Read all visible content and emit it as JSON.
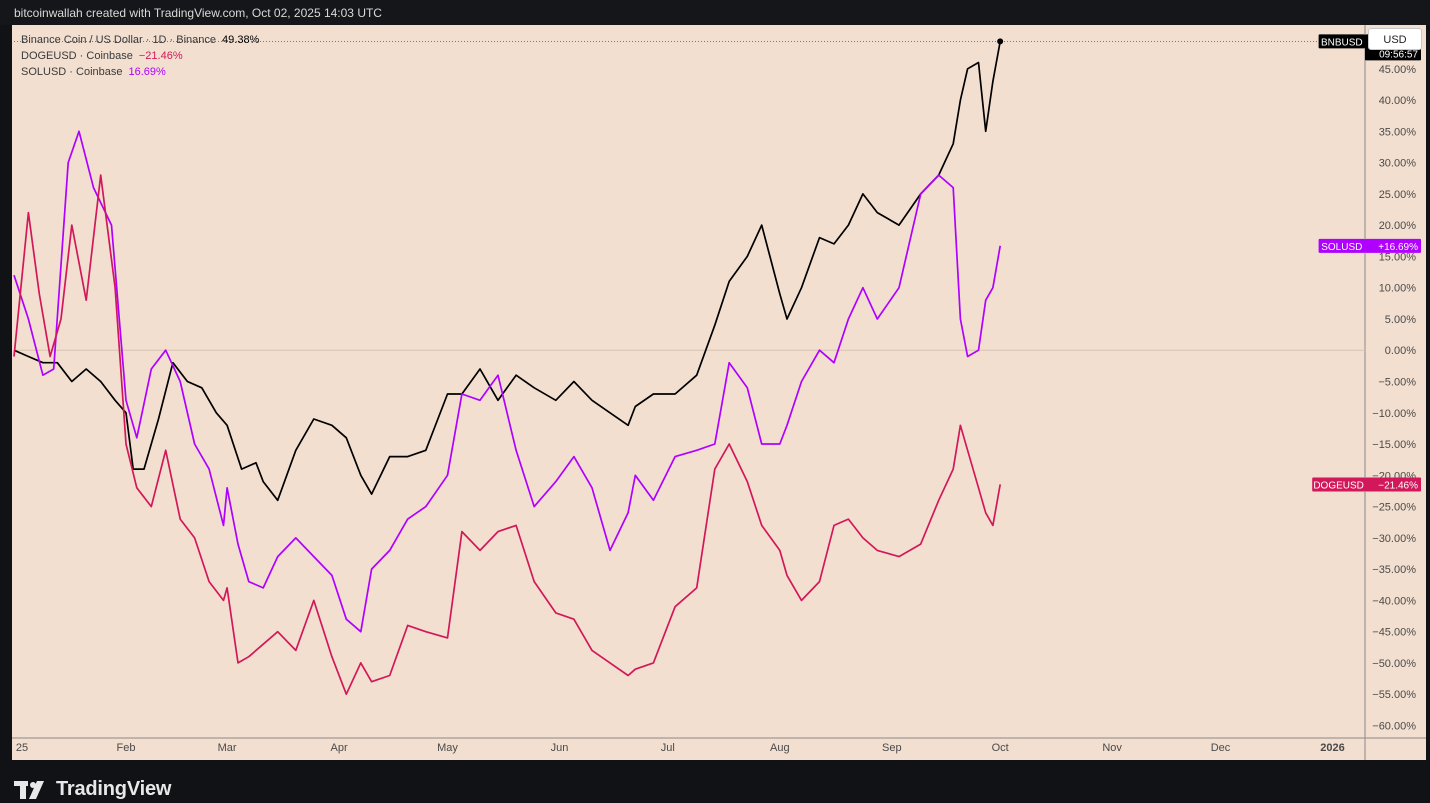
{
  "header": {
    "credit": "bitcoinwallah created with TradingView.com, Oct 02, 2025 14:03 UTC"
  },
  "legend": {
    "bnb_name": "Binance Coin / US Dollar · 1D · Binance",
    "bnb_value": "49.38%",
    "doge_name": "DOGEUSD · Coinbase",
    "doge_value": "−21.46%",
    "sol_name": "SOLUSD · Coinbase",
    "sol_value": "16.69%"
  },
  "currency_button": "USD",
  "footer": {
    "logo_text": "TradingView"
  },
  "colors": {
    "bnb": "#000000",
    "doge": "#d2185a",
    "sol": "#b000ff",
    "background": "#f2dfd0"
  },
  "chart_data": {
    "type": "line",
    "y_unit": "%",
    "ylim": [
      -62,
      52
    ],
    "xlim": [
      "2025-01-01",
      "2026-01-10"
    ],
    "y_ticks": [
      "45.00%",
      "40.00%",
      "35.00%",
      "30.00%",
      "25.00%",
      "20.00%",
      "15.00%",
      "10.00%",
      "5.00%",
      "0.00%",
      "−5.00%",
      "−10.00%",
      "−15.00%",
      "−20.00%",
      "−25.00%",
      "−30.00%",
      "−35.00%",
      "−40.00%",
      "−45.00%",
      "−50.00%",
      "−55.00%",
      "−60.00%"
    ],
    "y_tick_values": [
      45,
      40,
      35,
      30,
      25,
      20,
      15,
      10,
      5,
      0,
      -5,
      -10,
      -15,
      -20,
      -25,
      -30,
      -35,
      -40,
      -45,
      -50,
      -55,
      -60
    ],
    "x_ticks": [
      {
        "label": "25",
        "date": "2025-01-01"
      },
      {
        "label": "Feb",
        "date": "2025-02-01"
      },
      {
        "label": "Mar",
        "date": "2025-03-01"
      },
      {
        "label": "Apr",
        "date": "2025-04-01"
      },
      {
        "label": "May",
        "date": "2025-05-01"
      },
      {
        "label": "Jun",
        "date": "2025-06-01"
      },
      {
        "label": "Jul",
        "date": "2025-07-01"
      },
      {
        "label": "Aug",
        "date": "2025-08-01"
      },
      {
        "label": "Sep",
        "date": "2025-09-01"
      },
      {
        "label": "Oct",
        "date": "2025-10-01"
      },
      {
        "label": "Nov",
        "date": "2025-11-01"
      },
      {
        "label": "Dec",
        "date": "2025-12-01"
      },
      {
        "label": "2026",
        "date": "2026-01-01"
      }
    ],
    "series": [
      {
        "name": "BNBUSD",
        "tag_value": "+49.38%",
        "tag_time": "09:56:57",
        "color": "#000000",
        "x": [
          "2025-01-01",
          "2025-01-05",
          "2025-01-09",
          "2025-01-13",
          "2025-01-17",
          "2025-01-21",
          "2025-01-25",
          "2025-01-29",
          "2025-02-01",
          "2025-02-03",
          "2025-02-06",
          "2025-02-10",
          "2025-02-14",
          "2025-02-18",
          "2025-02-22",
          "2025-02-26",
          "2025-03-01",
          "2025-03-05",
          "2025-03-09",
          "2025-03-11",
          "2025-03-15",
          "2025-03-20",
          "2025-03-25",
          "2025-03-30",
          "2025-04-03",
          "2025-04-07",
          "2025-04-10",
          "2025-04-15",
          "2025-04-20",
          "2025-04-25",
          "2025-05-01",
          "2025-05-05",
          "2025-05-10",
          "2025-05-15",
          "2025-05-20",
          "2025-05-25",
          "2025-05-31",
          "2025-06-05",
          "2025-06-10",
          "2025-06-15",
          "2025-06-20",
          "2025-06-22",
          "2025-06-27",
          "2025-07-03",
          "2025-07-09",
          "2025-07-14",
          "2025-07-18",
          "2025-07-23",
          "2025-07-27",
          "2025-08-01",
          "2025-08-03",
          "2025-08-07",
          "2025-08-12",
          "2025-08-16",
          "2025-08-20",
          "2025-08-24",
          "2025-08-28",
          "2025-09-03",
          "2025-09-09",
          "2025-09-14",
          "2025-09-18",
          "2025-09-20",
          "2025-09-22",
          "2025-09-25",
          "2025-09-27",
          "2025-09-29",
          "2025-10-01"
        ],
        "y": [
          0,
          -1,
          -2,
          -2,
          -5,
          -3,
          -5,
          -8,
          -10,
          -19,
          -19,
          -11,
          -2,
          -5,
          -6,
          -10,
          -12,
          -19,
          -18,
          -21,
          -24,
          -16,
          -11,
          -12,
          -14,
          -20,
          -23,
          -17,
          -17,
          -16,
          -7,
          -7,
          -3,
          -8,
          -4,
          -6,
          -8,
          -5,
          -8,
          -10,
          -12,
          -9,
          -7,
          -7,
          -4,
          4,
          11,
          15,
          20,
          9,
          5,
          10,
          18,
          17,
          20,
          25,
          22,
          20,
          25,
          28,
          33,
          40,
          45,
          46,
          35,
          43,
          49.38
        ]
      },
      {
        "name": "SOLUSD",
        "tag_value": "+16.69%",
        "color": "#b000ff",
        "x": [
          "2025-01-01",
          "2025-01-05",
          "2025-01-09",
          "2025-01-12",
          "2025-01-16",
          "2025-01-19",
          "2025-01-23",
          "2025-01-28",
          "2025-02-01",
          "2025-02-04",
          "2025-02-08",
          "2025-02-12",
          "2025-02-16",
          "2025-02-20",
          "2025-02-24",
          "2025-02-28",
          "2025-03-01",
          "2025-03-04",
          "2025-03-07",
          "2025-03-11",
          "2025-03-15",
          "2025-03-20",
          "2025-03-25",
          "2025-03-30",
          "2025-04-03",
          "2025-04-07",
          "2025-04-10",
          "2025-04-15",
          "2025-04-20",
          "2025-04-25",
          "2025-05-01",
          "2025-05-05",
          "2025-05-10",
          "2025-05-15",
          "2025-05-20",
          "2025-05-25",
          "2025-05-31",
          "2025-06-05",
          "2025-06-10",
          "2025-06-15",
          "2025-06-20",
          "2025-06-22",
          "2025-06-27",
          "2025-07-03",
          "2025-07-09",
          "2025-07-14",
          "2025-07-18",
          "2025-07-23",
          "2025-07-27",
          "2025-08-01",
          "2025-08-03",
          "2025-08-07",
          "2025-08-12",
          "2025-08-16",
          "2025-08-20",
          "2025-08-24",
          "2025-08-28",
          "2025-09-03",
          "2025-09-09",
          "2025-09-14",
          "2025-09-18",
          "2025-09-20",
          "2025-09-22",
          "2025-09-25",
          "2025-09-27",
          "2025-09-29",
          "2025-10-01"
        ],
        "y": [
          12,
          5,
          -4,
          -3,
          30,
          35,
          26,
          20,
          -8,
          -14,
          -3,
          0,
          -5,
          -15,
          -19,
          -28,
          -22,
          -31,
          -37,
          -38,
          -33,
          -30,
          -33,
          -36,
          -43,
          -45,
          -35,
          -32,
          -27,
          -25,
          -20,
          -7,
          -8,
          -4,
          -16,
          -25,
          -21,
          -17,
          -22,
          -32,
          -26,
          -20,
          -24,
          -17,
          -16,
          -15,
          -2,
          -6,
          -15,
          -15,
          -12,
          -5,
          0,
          -2,
          5,
          10,
          5,
          10,
          25,
          28,
          26,
          5,
          -1,
          0,
          8,
          10,
          16.69
        ]
      },
      {
        "name": "DOGEUSD",
        "tag_value": "−21.46%",
        "color": "#d2185a",
        "x": [
          "2025-01-01",
          "2025-01-05",
          "2025-01-08",
          "2025-01-11",
          "2025-01-14",
          "2025-01-17",
          "2025-01-21",
          "2025-01-25",
          "2025-01-29",
          "2025-02-01",
          "2025-02-04",
          "2025-02-08",
          "2025-02-12",
          "2025-02-16",
          "2025-02-20",
          "2025-02-24",
          "2025-02-28",
          "2025-03-01",
          "2025-03-04",
          "2025-03-07",
          "2025-03-11",
          "2025-03-15",
          "2025-03-20",
          "2025-03-25",
          "2025-03-30",
          "2025-04-03",
          "2025-04-07",
          "2025-04-10",
          "2025-04-15",
          "2025-04-20",
          "2025-04-25",
          "2025-05-01",
          "2025-05-05",
          "2025-05-10",
          "2025-05-15",
          "2025-05-20",
          "2025-05-25",
          "2025-05-31",
          "2025-06-05",
          "2025-06-10",
          "2025-06-15",
          "2025-06-20",
          "2025-06-22",
          "2025-06-27",
          "2025-07-03",
          "2025-07-09",
          "2025-07-14",
          "2025-07-18",
          "2025-07-23",
          "2025-07-27",
          "2025-08-01",
          "2025-08-03",
          "2025-08-07",
          "2025-08-12",
          "2025-08-16",
          "2025-08-20",
          "2025-08-24",
          "2025-08-28",
          "2025-09-03",
          "2025-09-09",
          "2025-09-14",
          "2025-09-18",
          "2025-09-20",
          "2025-09-22",
          "2025-09-25",
          "2025-09-27",
          "2025-09-29",
          "2025-10-01"
        ],
        "y": [
          -1,
          22,
          9,
          -1,
          5,
          20,
          8,
          28,
          10,
          -15,
          -22,
          -25,
          -16,
          -27,
          -30,
          -37,
          -40,
          -38,
          -50,
          -49,
          -47,
          -45,
          -48,
          -40,
          -49,
          -55,
          -50,
          -53,
          -52,
          -44,
          -45,
          -46,
          -29,
          -32,
          -29,
          -28,
          -37,
          -42,
          -43,
          -48,
          -50,
          -52,
          -51,
          -50,
          -41,
          -38,
          -19,
          -15,
          -21,
          -28,
          -32,
          -36,
          -40,
          -37,
          -28,
          -27,
          -30,
          -32,
          -33,
          -31,
          -24,
          -19,
          -12,
          -16,
          -22,
          -26,
          -28,
          -21.46
        ]
      }
    ]
  }
}
